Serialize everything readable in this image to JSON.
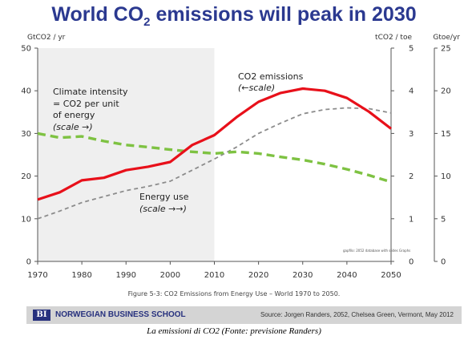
{
  "slide": {
    "title_main": "World CO",
    "title_sub": "2",
    "title_rest": " emissions will peak in 2030"
  },
  "chart_data": {
    "type": "line",
    "left_axis": {
      "label": "GtCO2 / yr",
      "ticks": [
        0,
        10,
        20,
        30,
        40,
        50
      ],
      "range": [
        0,
        50
      ]
    },
    "right_axis_1": {
      "label": "tCO2 / toe",
      "ticks": [
        0,
        1,
        2,
        3,
        4,
        5
      ],
      "range": [
        0,
        5
      ]
    },
    "right_axis_2": {
      "label": "Gtoe/yr",
      "ticks": [
        0,
        5,
        10,
        15,
        20,
        25
      ],
      "range": [
        0,
        25
      ]
    },
    "x_ticks": [
      1970,
      1980,
      1990,
      2000,
      2010,
      2020,
      2030,
      2040,
      2050
    ],
    "x_range": [
      1970,
      2050
    ],
    "history_shading": [
      1970,
      2010
    ],
    "series": [
      {
        "name": "CO2 emissions",
        "scale": "left",
        "color": "#e8101a",
        "style": "solid",
        "x": [
          1970,
          1975,
          1980,
          1985,
          1990,
          1995,
          2000,
          2005,
          2010,
          2015,
          2020,
          2025,
          2030,
          2035,
          2040,
          2045,
          2050
        ],
        "y": [
          14.5,
          16.2,
          19,
          19.6,
          21.4,
          22.2,
          23.3,
          27.3,
          29.6,
          33.8,
          37.4,
          39.5,
          40.5,
          40,
          38.3,
          35.1,
          31.1
        ]
      },
      {
        "name": "Climate intensity",
        "scale": "right_1",
        "color": "#7ec242",
        "style": "dashed",
        "x": [
          1970,
          1975,
          1980,
          1985,
          1990,
          1995,
          2000,
          2005,
          2010,
          2015,
          2020,
          2025,
          2030,
          2035,
          2040,
          2045,
          2050
        ],
        "y": [
          3.0,
          2.9,
          2.93,
          2.82,
          2.73,
          2.68,
          2.62,
          2.57,
          2.53,
          2.57,
          2.53,
          2.45,
          2.38,
          2.28,
          2.16,
          2.02,
          1.86
        ]
      },
      {
        "name": "Energy use",
        "scale": "right_2",
        "color": "#8c8c8c",
        "style": "dashed",
        "x": [
          1970,
          1975,
          1980,
          1985,
          1990,
          1995,
          2000,
          2005,
          2010,
          2015,
          2020,
          2025,
          2030,
          2035,
          2040,
          2045,
          2050
        ],
        "y": [
          5.0,
          5.9,
          6.9,
          7.6,
          8.3,
          8.8,
          9.4,
          10.7,
          12.0,
          13.4,
          15.0,
          16.2,
          17.3,
          17.8,
          18.0,
          17.9,
          17.4
        ]
      }
    ],
    "annotations": {
      "climate_1": "Climate intensity",
      "climate_2": "= CO2 per unit",
      "climate_3": "of energy",
      "climate_4": "(scale →)",
      "energy_1": "Energy use",
      "energy_2": "(scale →→)",
      "co2_1": "CO2 emissions",
      "co2_2": "(←scale)",
      "credit": "gapfilo: 2052 database with slides Graphs"
    }
  },
  "caption": "Figure 5-3:  CO2 Emissions from Energy Use – World 1970 to 2050.",
  "footer": {
    "logo": "BI",
    "school": "NORWEGIAN BUSINESS SCHOOL",
    "source": "Source: Jorgen Randers, 2052, Chelsea Green, Vermont, May 2012"
  },
  "bottom_caption": "La emissioni di CO2 (Fonte: previsione Randers)"
}
